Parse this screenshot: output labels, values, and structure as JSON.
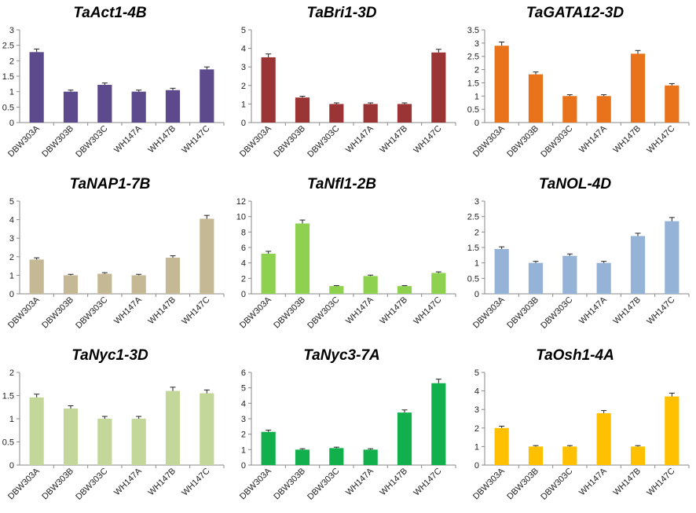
{
  "figure": {
    "description_categories": [
      "DBW303A",
      "DBW303B",
      "DBW303C",
      "WH147A",
      "WH147B",
      "WH147C"
    ]
  },
  "chart_data": [
    {
      "type": "bar",
      "title": "TaAct1-4B",
      "color": "#5C4A8C",
      "categories": [
        "DBW303A",
        "DBW303B",
        "DBW303C",
        "WH147A",
        "WH147B",
        "WH147C"
      ],
      "values": [
        2.28,
        1.0,
        1.22,
        1.0,
        1.05,
        1.72
      ],
      "errors": [
        0.1,
        0.05,
        0.06,
        0.05,
        0.06,
        0.08
      ],
      "ylim": [
        0,
        3
      ],
      "yticks": [
        "0",
        "0.5",
        "1",
        "1.5",
        "2",
        "2.5",
        "3"
      ],
      "ytick_values": [
        0,
        0.5,
        1,
        1.5,
        2,
        2.5,
        3
      ],
      "xlabel": "",
      "ylabel": ""
    },
    {
      "type": "bar",
      "title": "TaBri1-3D",
      "color": "#9B3535",
      "categories": [
        "DBW303A",
        "DBW303B",
        "DBW303C",
        "WH147A",
        "WH147B",
        "WH147C"
      ],
      "values": [
        3.52,
        1.35,
        1.0,
        1.0,
        1.0,
        3.78
      ],
      "errors": [
        0.18,
        0.07,
        0.06,
        0.06,
        0.06,
        0.17
      ],
      "ylim": [
        0,
        5
      ],
      "yticks": [
        "0",
        "1",
        "2",
        "3",
        "4",
        "5"
      ],
      "ytick_values": [
        0,
        1,
        2,
        3,
        4,
        5
      ],
      "xlabel": "",
      "ylabel": ""
    },
    {
      "type": "bar",
      "title": "TaGATA12-3D",
      "color": "#E8731A",
      "categories": [
        "DBW303A",
        "DBW303B",
        "DBW303C",
        "WH147A",
        "WH147B",
        "WH147C"
      ],
      "values": [
        2.9,
        1.82,
        1.0,
        1.0,
        2.6,
        1.4
      ],
      "errors": [
        0.14,
        0.09,
        0.05,
        0.05,
        0.12,
        0.07
      ],
      "ylim": [
        0,
        3.5
      ],
      "yticks": [
        "0",
        "0.5",
        "1",
        "1.5",
        "2",
        "2.5",
        "3",
        "3.5"
      ],
      "ytick_values": [
        0,
        0.5,
        1,
        1.5,
        2,
        2.5,
        3,
        3.5
      ],
      "xlabel": "",
      "ylabel": ""
    },
    {
      "type": "bar",
      "title": "TaNAP1-7B",
      "color": "#C4B994",
      "categories": [
        "DBW303A",
        "DBW303B",
        "DBW303C",
        "WH147A",
        "WH147B",
        "WH147C"
      ],
      "values": [
        1.85,
        1.0,
        1.08,
        1.0,
        1.95,
        4.05
      ],
      "errors": [
        0.09,
        0.05,
        0.06,
        0.05,
        0.1,
        0.18
      ],
      "ylim": [
        0,
        5
      ],
      "yticks": [
        "0",
        "1",
        "2",
        "3",
        "4",
        "5"
      ],
      "ytick_values": [
        0,
        1,
        2,
        3,
        4,
        5
      ],
      "xlabel": "",
      "ylabel": ""
    },
    {
      "type": "bar",
      "title": "TaNfl1-2B",
      "color": "#8ED14F",
      "categories": [
        "DBW303A",
        "DBW303B",
        "DBW303C",
        "WH147A",
        "WH147B",
        "WH147C"
      ],
      "values": [
        5.2,
        9.1,
        1.0,
        2.3,
        1.0,
        2.7
      ],
      "errors": [
        0.3,
        0.45,
        0.06,
        0.12,
        0.06,
        0.14
      ],
      "ylim": [
        0,
        12
      ],
      "yticks": [
        "0",
        "2",
        "4",
        "6",
        "8",
        "10",
        "12"
      ],
      "ytick_values": [
        0,
        2,
        4,
        6,
        8,
        10,
        12
      ],
      "xlabel": "",
      "ylabel": ""
    },
    {
      "type": "bar",
      "title": "TaNOL-4D",
      "color": "#95B3D7",
      "categories": [
        "DBW303A",
        "DBW303B",
        "DBW303C",
        "WH147A",
        "WH147B",
        "WH147C"
      ],
      "values": [
        1.45,
        1.0,
        1.23,
        1.0,
        1.87,
        2.35
      ],
      "errors": [
        0.07,
        0.05,
        0.06,
        0.05,
        0.09,
        0.12
      ],
      "ylim": [
        0,
        3
      ],
      "yticks": [
        "0",
        "0.5",
        "1",
        "1.5",
        "2",
        "2.5",
        "3"
      ],
      "ytick_values": [
        0,
        0.5,
        1,
        1.5,
        2,
        2.5,
        3
      ],
      "xlabel": "",
      "ylabel": ""
    },
    {
      "type": "bar",
      "title": "TaNyc1-3D",
      "color": "#C4D79B",
      "categories": [
        "DBW303A",
        "DBW303B",
        "DBW303C",
        "WH147A",
        "WH147B",
        "WH147C"
      ],
      "values": [
        1.46,
        1.22,
        1.0,
        1.0,
        1.6,
        1.55
      ],
      "errors": [
        0.07,
        0.06,
        0.05,
        0.05,
        0.08,
        0.07
      ],
      "ylim": [
        0,
        2
      ],
      "yticks": [
        "0",
        "0.5",
        "1",
        "1.5",
        "2"
      ],
      "ytick_values": [
        0,
        0.5,
        1,
        1.5,
        2
      ],
      "xlabel": "",
      "ylabel": ""
    },
    {
      "type": "bar",
      "title": "TaNyc3-7A",
      "color": "#12B04C",
      "categories": [
        "DBW303A",
        "DBW303B",
        "DBW303C",
        "WH147A",
        "WH147B",
        "WH147C"
      ],
      "values": [
        2.15,
        1.0,
        1.1,
        1.0,
        3.4,
        5.3
      ],
      "errors": [
        0.11,
        0.06,
        0.06,
        0.06,
        0.17,
        0.26
      ],
      "ylim": [
        0,
        6
      ],
      "yticks": [
        "0",
        "1",
        "2",
        "3",
        "4",
        "5",
        "6"
      ],
      "ytick_values": [
        0,
        1,
        2,
        3,
        4,
        5,
        6
      ],
      "xlabel": "",
      "ylabel": ""
    },
    {
      "type": "bar",
      "title": "TaOsh1-4A",
      "color": "#FFC000",
      "categories": [
        "DBW303A",
        "DBW303B",
        "DBW303C",
        "WH147A",
        "WH147B",
        "WH147C"
      ],
      "values": [
        2.0,
        1.0,
        1.0,
        2.8,
        1.0,
        3.7
      ],
      "errors": [
        0.1,
        0.05,
        0.05,
        0.14,
        0.05,
        0.18
      ],
      "ylim": [
        0,
        5
      ],
      "yticks": [
        "0",
        "1",
        "2",
        "3",
        "4",
        "5"
      ],
      "ytick_values": [
        0,
        1,
        2,
        3,
        4,
        5
      ],
      "xlabel": "",
      "ylabel": ""
    }
  ]
}
